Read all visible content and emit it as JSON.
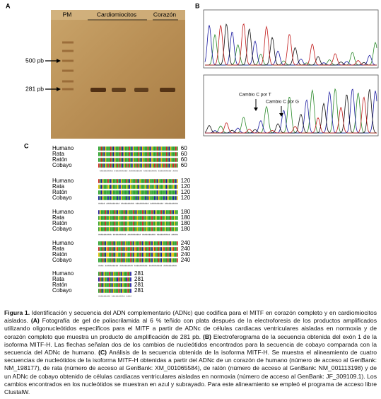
{
  "panel_a": {
    "label": "A",
    "lanes": [
      "PM",
      "Cardiomiocitos",
      "Corazón"
    ],
    "markers": [
      "500 pb",
      "281 pb"
    ]
  },
  "panel_b": {
    "label": "B",
    "annotations": [
      "Cambio C por T",
      "Cambio C por G"
    ]
  },
  "panel_c": {
    "label": "C",
    "blocks": [
      {
        "rows": [
          {
            "name": "Humano",
            "end": 60
          },
          {
            "name": "Rata",
            "end": 60
          },
          {
            "name": "Ratón",
            "end": 60
          },
          {
            "name": "Cobayo",
            "end": 60
          }
        ]
      },
      {
        "rows": [
          {
            "name": "Humano",
            "end": 120
          },
          {
            "name": "Rata",
            "end": 120
          },
          {
            "name": "Ratón",
            "end": 120
          },
          {
            "name": "Cobayo",
            "end": 120
          }
        ]
      },
      {
        "rows": [
          {
            "name": "Humano",
            "end": 180
          },
          {
            "name": "Rata",
            "end": 180
          },
          {
            "name": "Ratón",
            "end": 180
          },
          {
            "name": "Cobayo",
            "end": 180
          }
        ]
      },
      {
        "rows": [
          {
            "name": "Humano",
            "end": 240
          },
          {
            "name": "Rata",
            "end": 240
          },
          {
            "name": "Ratón",
            "end": 240
          },
          {
            "name": "Cobayo",
            "end": 240
          }
        ]
      },
      {
        "rows": [
          {
            "name": "Humano",
            "end": 281
          },
          {
            "name": "Rata",
            "end": 281
          },
          {
            "name": "Ratón",
            "end": 281
          },
          {
            "name": "Cobayo",
            "end": 281
          }
        ]
      }
    ]
  },
  "caption": [
    {
      "text": "Figura 1.",
      "bold": true
    },
    {
      "text": " Identificación y secuencia del ADN complementario (ADNc) que codifica para el MITF en corazón completo y en cardiomiocitos aislados. ",
      "bold": false
    },
    {
      "text": "(A)",
      "bold": true
    },
    {
      "text": " Fotografía de gel de poliacrilamida al 6 % teñido con plata después de la electroforesis de los productos amplificados utilizando oligonucleótidos específicos para el MITF a partir de ADNc de células cardiacas ventriculares aisladas en normoxia y de corazón completo que muestra un producto de amplificación de 281 pb. ",
      "bold": false
    },
    {
      "text": "(B)",
      "bold": true
    },
    {
      "text": " Electroferograma de la secuencia obtenida del exón 1 de la isoforma MITF-H. Las flechas señalan dos de los cambios de nucleótidos encontrados para la secuencia de cobayo comparada con la secuencia del ADNc de humano. ",
      "bold": false
    },
    {
      "text": "(C)",
      "bold": true
    },
    {
      "text": " Análisis de la secuencia obtenida de la isoforma MITF-H. Se muestra el alineamiento de cuatro secuencias de nucleótidos de la isoforma MITF-H obtenidas a partir del ADNc de un corazón de humano (número de acceso al GenBank: NM_198177), de rata (número de acceso al GenBank: XM_001065584), de ratón (número de acceso al GenBank: NM_001113198) y de un ADNc de cobayo obtenido de células cardiacas ventriculares aisladas en normoxia (número de acceso al GenBank: JF_309109.1). Los cambios encontrados en los nucleótidos se muestran en azul y subrayado. Para este alineamiento se empleó el programa de acceso libre ClustalW.",
      "bold": false
    }
  ]
}
